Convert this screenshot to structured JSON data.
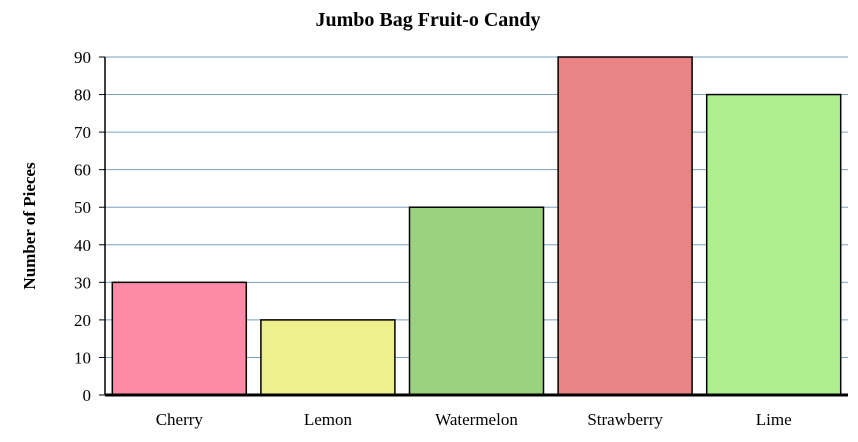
{
  "chart_data": {
    "type": "bar",
    "title": "Jumbo Bag Fruit-o Candy",
    "xlabel": "",
    "ylabel": "Number of Pieces",
    "categories": [
      "Cherry",
      "Lemon",
      "Watermelon",
      "Strawberry",
      "Lime"
    ],
    "values": [
      30,
      20,
      50,
      90,
      80
    ],
    "colors": [
      "#ff8aa5",
      "#eef08e",
      "#9bd27f",
      "#ea8383",
      "#aeef8e"
    ],
    "ylim": [
      0,
      90
    ],
    "yticks": [
      0,
      10,
      20,
      30,
      40,
      50,
      60,
      70,
      80,
      90
    ],
    "grid": true,
    "grid_color": "#7aa0c0"
  }
}
